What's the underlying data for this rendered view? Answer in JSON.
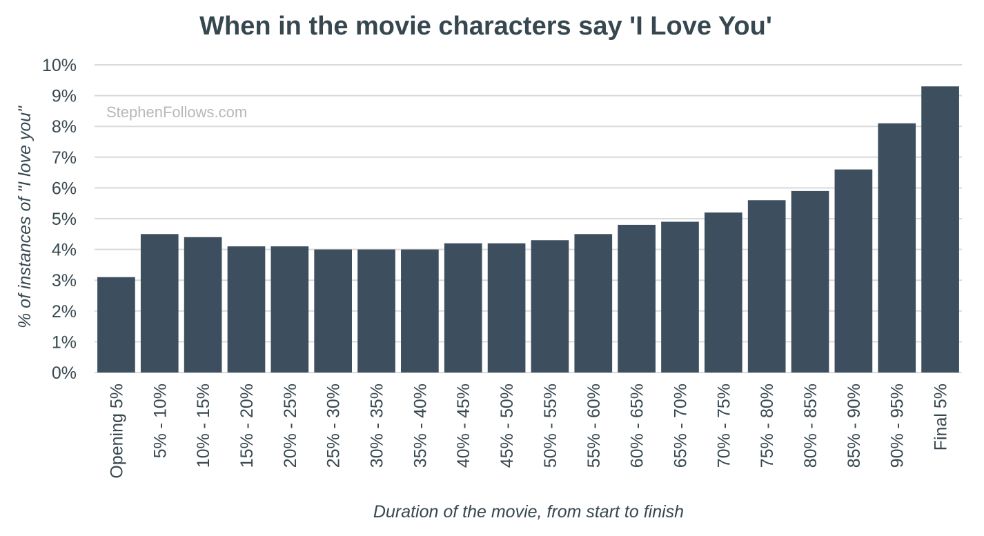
{
  "chart_data": {
    "type": "bar",
    "title": "When in the movie characters say 'I Love You'",
    "xlabel": "Duration of the movie, from start to finish",
    "ylabel": "% of instances of \"I love you\"",
    "watermark": "StephenFollows.com",
    "categories": [
      "Opening 5%",
      "5% - 10%",
      "10% - 15%",
      "15% - 20%",
      "20% - 25%",
      "25% - 30%",
      "30% - 35%",
      "35% - 40%",
      "40% - 45%",
      "45% - 50%",
      "50% - 55%",
      "55% - 60%",
      "60% - 65%",
      "65% - 70%",
      "70% - 75%",
      "75% - 80%",
      "80% - 85%",
      "85% - 90%",
      "90% - 95%",
      "Final 5%"
    ],
    "values": [
      3.1,
      4.5,
      4.4,
      4.1,
      4.1,
      4.0,
      4.0,
      4.0,
      4.2,
      4.2,
      4.3,
      4.5,
      4.8,
      4.9,
      5.2,
      5.6,
      5.9,
      6.6,
      8.1,
      9.3
    ],
    "ylim": [
      0,
      10
    ],
    "yticks": [
      "0%",
      "1%",
      "2%",
      "3%",
      "4%",
      "5%",
      "6%",
      "7%",
      "8%",
      "9%",
      "10%"
    ],
    "grid": true,
    "legend": "none",
    "colors": {
      "bar": "#3d4f5f",
      "text": "#37474f",
      "grid": "#d9d9d9",
      "watermark": "#b8b8b8"
    }
  }
}
